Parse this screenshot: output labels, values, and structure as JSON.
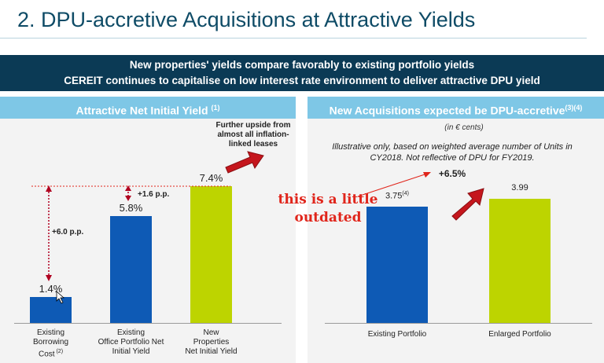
{
  "slide": {
    "title": "2. DPU-accretive Acquisitions at Attractive Yields",
    "banner_line1": "New properties' yields compare favorably to existing portfolio yields",
    "banner_line2": "CEREIT continues to capitalise on low interest rate environment to deliver attractive DPU yield"
  },
  "left_panel": {
    "header": "Attractive Net Initial Yield",
    "header_sup": "(1)",
    "upside_note": "Further upside from almost all inflation-linked leases",
    "gap1": "+6.0 p.p.",
    "gap2": "+1.6 p.p."
  },
  "right_panel": {
    "header": "New Acquisitions expected be DPU-accretive",
    "header_sup": "(3)(4)",
    "unit": "(in € cents)",
    "illustrative": "Illustrative only, based on weighted average number of Units in CY2018. Not reflective of DPU for FY2019.",
    "growth": "+6.5%",
    "annotation": "this is a little outdated"
  },
  "chart_data": [
    {
      "type": "bar",
      "title": "Attractive Net Initial Yield",
      "categories": [
        "Existing Borrowing Cost (2)",
        "Existing Office Portfolio Net Initial Yield",
        "New Properties Net Initial Yield"
      ],
      "category_lines": [
        [
          "Existing",
          "Borrowing",
          "Cost"
        ],
        [
          "Existing",
          "Office Portfolio Net",
          "Initial Yield"
        ],
        [
          "New",
          "Properties",
          "Net Initial Yield"
        ]
      ],
      "category_sups": [
        "(2)",
        "",
        ""
      ],
      "values": [
        1.4,
        5.8,
        7.4
      ],
      "value_labels": [
        "1.4%",
        "5.8%",
        "7.4%"
      ],
      "colors": [
        "#0e5ab5",
        "#0e5ab5",
        "#bdd400"
      ],
      "ylim": [
        0,
        7.4
      ]
    },
    {
      "type": "bar",
      "title": "New Acquisitions expected be DPU-accretive",
      "categories": [
        "Existing Portfolio",
        "Enlarged Portfolio"
      ],
      "values": [
        3.75,
        3.99
      ],
      "value_labels": [
        "3.75",
        "3.99"
      ],
      "value_sups": [
        "(4)",
        ""
      ],
      "colors": [
        "#0e5ab5",
        "#bdd400"
      ],
      "ylim": [
        0,
        3.99
      ]
    }
  ]
}
